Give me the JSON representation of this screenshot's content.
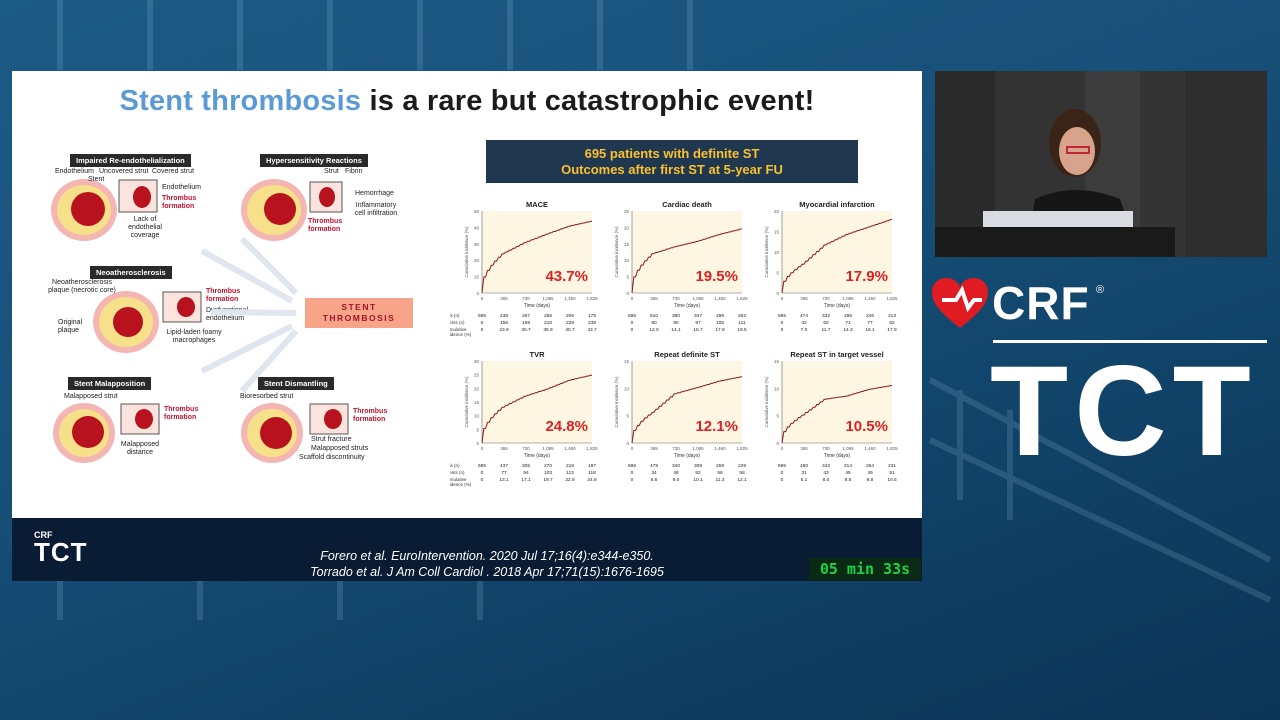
{
  "slide": {
    "title_highlight": "Stent thrombosis",
    "title_rest": " is a rare but catastrophic event!",
    "mechanisms": [
      {
        "title": "Impaired Re-endothelialization",
        "labels": [
          "Endothelium",
          "Uncovered strut",
          "Covered strut",
          "Stent",
          "Endothelium",
          "Thrombus formation",
          "Lack of endothelial coverage"
        ]
      },
      {
        "title": "Hypersensitivity Reactions",
        "labels": [
          "Strut",
          "Fibrin",
          "Hemorrhage",
          "Inflammatory cell infiltration",
          "Thrombus formation"
        ]
      },
      {
        "title": "Neoatherosclerosis",
        "labels": [
          "Neoatherosclerosis plaque (necrotic core)",
          "Original plaque",
          "Thrombus formation",
          "Dysfunctional endothelium",
          "Lipid-laden foamy macrophages"
        ]
      },
      {
        "title": "Stent Malapposition",
        "labels": [
          "Malapposed strut",
          "Thrombus formation",
          "Malapposed distance"
        ]
      },
      {
        "title": "Stent Dismantling",
        "labels": [
          "Bioresorbed strut",
          "Thrombus formation",
          "Strut fracture",
          "Malapposed struts",
          "Scaffold discontinuity"
        ]
      }
    ],
    "center_label_line1": "STENT",
    "center_label_line2": "THROMBOSIS",
    "banner_line1": "695 patients with definite ST",
    "banner_line2": "Outcomes after first ST at 5-year FU",
    "footer": {
      "logo_small": "CRF",
      "logo_big": "TCT",
      "ref1": "Forero et al. EuroIntervention. 2020 Jul 17;16(4):e344-e350.",
      "ref2": "Torrado et al. J Am Coll Cardiol . 2018 Apr 17;71(15):1676-1695",
      "timer": "05 min 33s"
    }
  },
  "side_branding": {
    "crf": "CRF",
    "reg": "®",
    "tct": "TCT"
  },
  "colors": {
    "title_highlight": "#5b9bd5",
    "banner_bg": "#1f3850",
    "banner_text": "#fbc02d",
    "curve": "#8b1a1a",
    "percent": "#e02020",
    "plot_bg": "#fdf6e3",
    "timer_text": "#19d44a"
  },
  "chart_data": {
    "type": "line",
    "x_ticks": [
      0,
      365,
      730,
      1095,
      1460,
      1825
    ],
    "xlabel": "Time (days)",
    "ylabel": "Cumulative incidence (%)",
    "row_labels": [
      "Risk (n)",
      "Events (n)",
      "Cumulative incidence (%)"
    ],
    "panels": [
      {
        "title": "MACE",
        "percent": "43.7%",
        "ylim": [
          0,
          50
        ],
        "y_ticks": [
          0,
          10,
          20,
          30,
          40,
          50
        ],
        "risk": [
          "695",
          "438",
          "297",
          "256",
          "206",
          "175"
        ],
        "events": [
          "0",
          "156",
          "189",
          "210",
          "228",
          "238"
        ],
        "cumulative": [
          "0",
          "23.9",
          "30.7",
          "35.9",
          "40.7",
          "43.7"
        ]
      },
      {
        "title": "Cardiac death",
        "percent": "19.5%",
        "ylim": [
          0,
          25
        ],
        "y_ticks": [
          0,
          5,
          10,
          15,
          20,
          25
        ],
        "risk": [
          "695",
          "510",
          "380",
          "347",
          "299",
          "262"
        ],
        "events": [
          "0",
          "80",
          "90",
          "97",
          "105",
          "111"
        ],
        "cumulative": [
          "0",
          "12.0",
          "14.1",
          "15.7",
          "17.8",
          "19.5"
        ]
      },
      {
        "title": "Myocardial infarction",
        "percent": "17.9%",
        "ylim": [
          0,
          20
        ],
        "y_ticks": [
          0,
          5,
          10,
          15,
          20
        ],
        "risk": [
          "695",
          "474",
          "332",
          "295",
          "246",
          "213"
        ],
        "events": [
          "0",
          "42",
          "62",
          "71",
          "77",
          "82"
        ],
        "cumulative": [
          "0",
          "7.0",
          "11.7",
          "14.3",
          "16.1",
          "17.9"
        ]
      },
      {
        "title": "TVR",
        "percent": "24.8%",
        "ylim": [
          0,
          30
        ],
        "y_ticks": [
          0,
          5,
          10,
          15,
          20,
          25,
          30
        ],
        "risk": [
          "695",
          "437",
          "305",
          "270",
          "219",
          "187"
        ],
        "events": [
          "0",
          "77",
          "94",
          "103",
          "113",
          "118"
        ],
        "cumulative": [
          "0",
          "13.1",
          "17.1",
          "19.7",
          "22.9",
          "24.8"
        ]
      },
      {
        "title": "Repeat definite ST",
        "percent": "12.1%",
        "ylim": [
          0,
          15
        ],
        "y_ticks": [
          0,
          5,
          10,
          15
        ],
        "risk": [
          "695",
          "479",
          "340",
          "309",
          "259",
          "229"
        ],
        "events": [
          "0",
          "34",
          "48",
          "52",
          "56",
          "58"
        ],
        "cumulative": [
          "0",
          "5.6",
          "9.0",
          "10.1",
          "11.3",
          "12.1"
        ]
      },
      {
        "title": "Repeat ST in target vessel",
        "percent": "10.5%",
        "ylim": [
          0,
          15
        ],
        "y_ticks": [
          0,
          5,
          10,
          15
        ],
        "risk": [
          "695",
          "480",
          "343",
          "314",
          "264",
          "231"
        ],
        "events": [
          "0",
          "31",
          "43",
          "45",
          "49",
          "51"
        ],
        "cumulative": [
          "0",
          "5.1",
          "8.0",
          "8.6",
          "9.8",
          "10.5"
        ]
      }
    ]
  }
}
